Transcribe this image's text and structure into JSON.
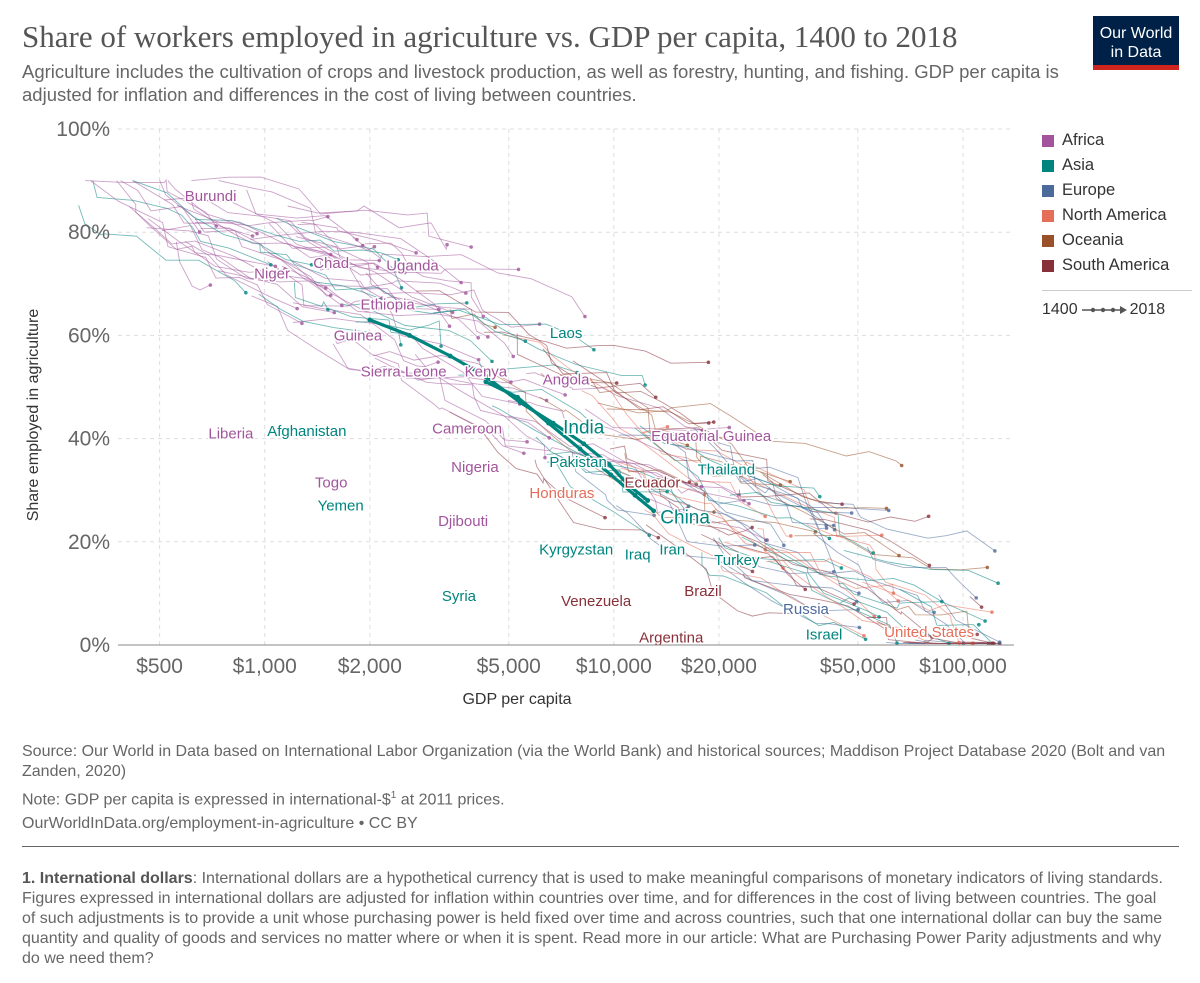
{
  "header": {
    "title": "Share of workers employed in agriculture vs. GDP per capita, 1400 to 2018",
    "subtitle": "Agriculture includes the cultivation of crops and livestock production, as well as forestry, hunting, and fishing. GDP per capita is adjusted for inflation and differences in the cost of living between countries.",
    "logo_line1": "Our World",
    "logo_line2": "in Data"
  },
  "colors": {
    "Africa": "#a2559c",
    "Asia": "#00847e",
    "Europe": "#4c6a9c",
    "North America": "#e56e5a",
    "Oceania": "#9a5129",
    "South America": "#883039",
    "grid": "#dddddd",
    "axis": "#666666"
  },
  "legend": {
    "items": [
      "Africa",
      "Asia",
      "Europe",
      "North America",
      "Oceania",
      "South America"
    ],
    "timeline_start": "1400",
    "timeline_end": "2018"
  },
  "chart_data": {
    "type": "scatter",
    "connected": true,
    "title": "Share of workers employed in agriculture vs. GDP per capita, 1400 to 2018",
    "xlabel": "GDP per capita",
    "ylabel": "Share employed in agriculture",
    "xscale": "log",
    "xlim": [
      380,
      140000
    ],
    "ylim": [
      0,
      100
    ],
    "xticks": [
      {
        "value": 500,
        "label": "$500"
      },
      {
        "value": 1000,
        "label": "$1,000"
      },
      {
        "value": 2000,
        "label": "$2,000"
      },
      {
        "value": 5000,
        "label": "$5,000"
      },
      {
        "value": 10000,
        "label": "$10,000"
      },
      {
        "value": 20000,
        "label": "$20,000"
      },
      {
        "value": 50000,
        "label": "$50,000"
      },
      {
        "value": 100000,
        "label": "$100,000"
      }
    ],
    "yticks": [
      {
        "value": 0,
        "label": "0%"
      },
      {
        "value": 20,
        "label": "20%"
      },
      {
        "value": 40,
        "label": "40%"
      },
      {
        "value": 60,
        "label": "60%"
      },
      {
        "value": 80,
        "label": "80%"
      },
      {
        "value": 100,
        "label": "100%"
      }
    ],
    "highlighted_series": [
      {
        "name": "India",
        "region": "Asia",
        "points": [
          [
            2000,
            63
          ],
          [
            2600,
            60
          ],
          [
            3400,
            56
          ],
          [
            4300,
            52
          ],
          [
            5400,
            47
          ],
          [
            6700,
            43
          ],
          [
            8200,
            39
          ],
          [
            9700,
            35
          ],
          [
            11000,
            31
          ],
          [
            12500,
            28
          ]
        ]
      },
      {
        "name": "China",
        "region": "Asia",
        "points": [
          [
            4300,
            51
          ],
          [
            5300,
            48
          ],
          [
            6500,
            43
          ],
          [
            8000,
            38
          ],
          [
            9800,
            33
          ],
          [
            11500,
            29
          ],
          [
            13000,
            26
          ]
        ]
      }
    ],
    "labels": [
      {
        "text": "Burundi",
        "region": "Africa",
        "x": 700,
        "y": 87
      },
      {
        "text": "Niger",
        "region": "Africa",
        "x": 1050,
        "y": 72
      },
      {
        "text": "Chad",
        "region": "Africa",
        "x": 1550,
        "y": 74
      },
      {
        "text": "Uganda",
        "region": "Africa",
        "x": 2650,
        "y": 73.5
      },
      {
        "text": "Ethiopia",
        "region": "Africa",
        "x": 2250,
        "y": 66
      },
      {
        "text": "Guinea",
        "region": "Africa",
        "x": 1850,
        "y": 60
      },
      {
        "text": "Sierra Leone",
        "region": "Africa",
        "x": 2500,
        "y": 53
      },
      {
        "text": "Kenya",
        "region": "Africa",
        "x": 4300,
        "y": 53
      },
      {
        "text": "Angola",
        "region": "Africa",
        "x": 7300,
        "y": 51.5
      },
      {
        "text": "Laos",
        "region": "Asia",
        "x": 7300,
        "y": 60.5
      },
      {
        "text": "India",
        "region": "Asia",
        "x": 8200,
        "y": 42,
        "bold": true
      },
      {
        "text": "Liberia",
        "region": "Africa",
        "x": 800,
        "y": 41
      },
      {
        "text": "Afghanistan",
        "region": "Asia",
        "x": 1320,
        "y": 41.5
      },
      {
        "text": "Cameroon",
        "region": "Africa",
        "x": 3800,
        "y": 42
      },
      {
        "text": "Equatorial Guinea",
        "region": "Africa",
        "x": 19000,
        "y": 40.5
      },
      {
        "text": "Pakistan",
        "region": "Asia",
        "x": 7900,
        "y": 35.5
      },
      {
        "text": "Nigeria",
        "region": "Africa",
        "x": 4000,
        "y": 34.5
      },
      {
        "text": "Thailand",
        "region": "Asia",
        "x": 21000,
        "y": 34
      },
      {
        "text": "Togo",
        "region": "Africa",
        "x": 1550,
        "y": 31.5
      },
      {
        "text": "Honduras",
        "region": "North America",
        "x": 7100,
        "y": 29.5
      },
      {
        "text": "Ecuador",
        "region": "South America",
        "x": 12900,
        "y": 31.5
      },
      {
        "text": "Yemen",
        "region": "Asia",
        "x": 1650,
        "y": 27
      },
      {
        "text": "Djibouti",
        "region": "Africa",
        "x": 3700,
        "y": 24
      },
      {
        "text": "China",
        "region": "Asia",
        "x": 16000,
        "y": 24.5,
        "bold": true
      },
      {
        "text": "Kyrgyzstan",
        "region": "Asia",
        "x": 7800,
        "y": 18.5
      },
      {
        "text": "Iraq",
        "region": "Asia",
        "x": 11700,
        "y": 17.5
      },
      {
        "text": "Iran",
        "region": "Asia",
        "x": 14700,
        "y": 18.5
      },
      {
        "text": "Turkey",
        "region": "Asia",
        "x": 22500,
        "y": 16.5
      },
      {
        "text": "Syria",
        "region": "Asia",
        "x": 3600,
        "y": 9.5
      },
      {
        "text": "Venezuela",
        "region": "South America",
        "x": 8900,
        "y": 8.5
      },
      {
        "text": "Brazil",
        "region": "South America",
        "x": 18000,
        "y": 10.5
      },
      {
        "text": "Russia",
        "region": "Europe",
        "x": 35500,
        "y": 7
      },
      {
        "text": "Argentina",
        "region": "South America",
        "x": 14600,
        "y": 1.5
      },
      {
        "text": "Israel",
        "region": "Asia",
        "x": 40000,
        "y": 2
      },
      {
        "text": "United States",
        "region": "North America",
        "x": 80000,
        "y": 2.5
      }
    ]
  },
  "footer": {
    "source": "Source: Our World in Data based on International Labor Organization (via the World Bank) and historical sources; Maddison Project Database 2020 (Bolt and van Zanden, 2020)",
    "note_before": "Note: GDP per capita is expressed in international-$",
    "note_sup": "1",
    "note_after": " at 2011 prices.",
    "url": "OurWorldInData.org/employment-in-agriculture • CC BY"
  },
  "footnote": {
    "term": "1. International dollars",
    "text": ": International dollars are a hypothetical currency that is used to make meaningful comparisons of monetary indicators of living standards. Figures expressed in international dollars are adjusted for inflation within countries over time, and for differences in the cost of living between countries. The goal of such adjustments is to provide a unit whose purchasing power is held fixed over time and across countries, such that one international dollar can buy the same quantity and quality of goods and services no matter where or when it is spent. Read more in our article: What are Purchasing Power Parity adjustments and why do we need them?"
  }
}
